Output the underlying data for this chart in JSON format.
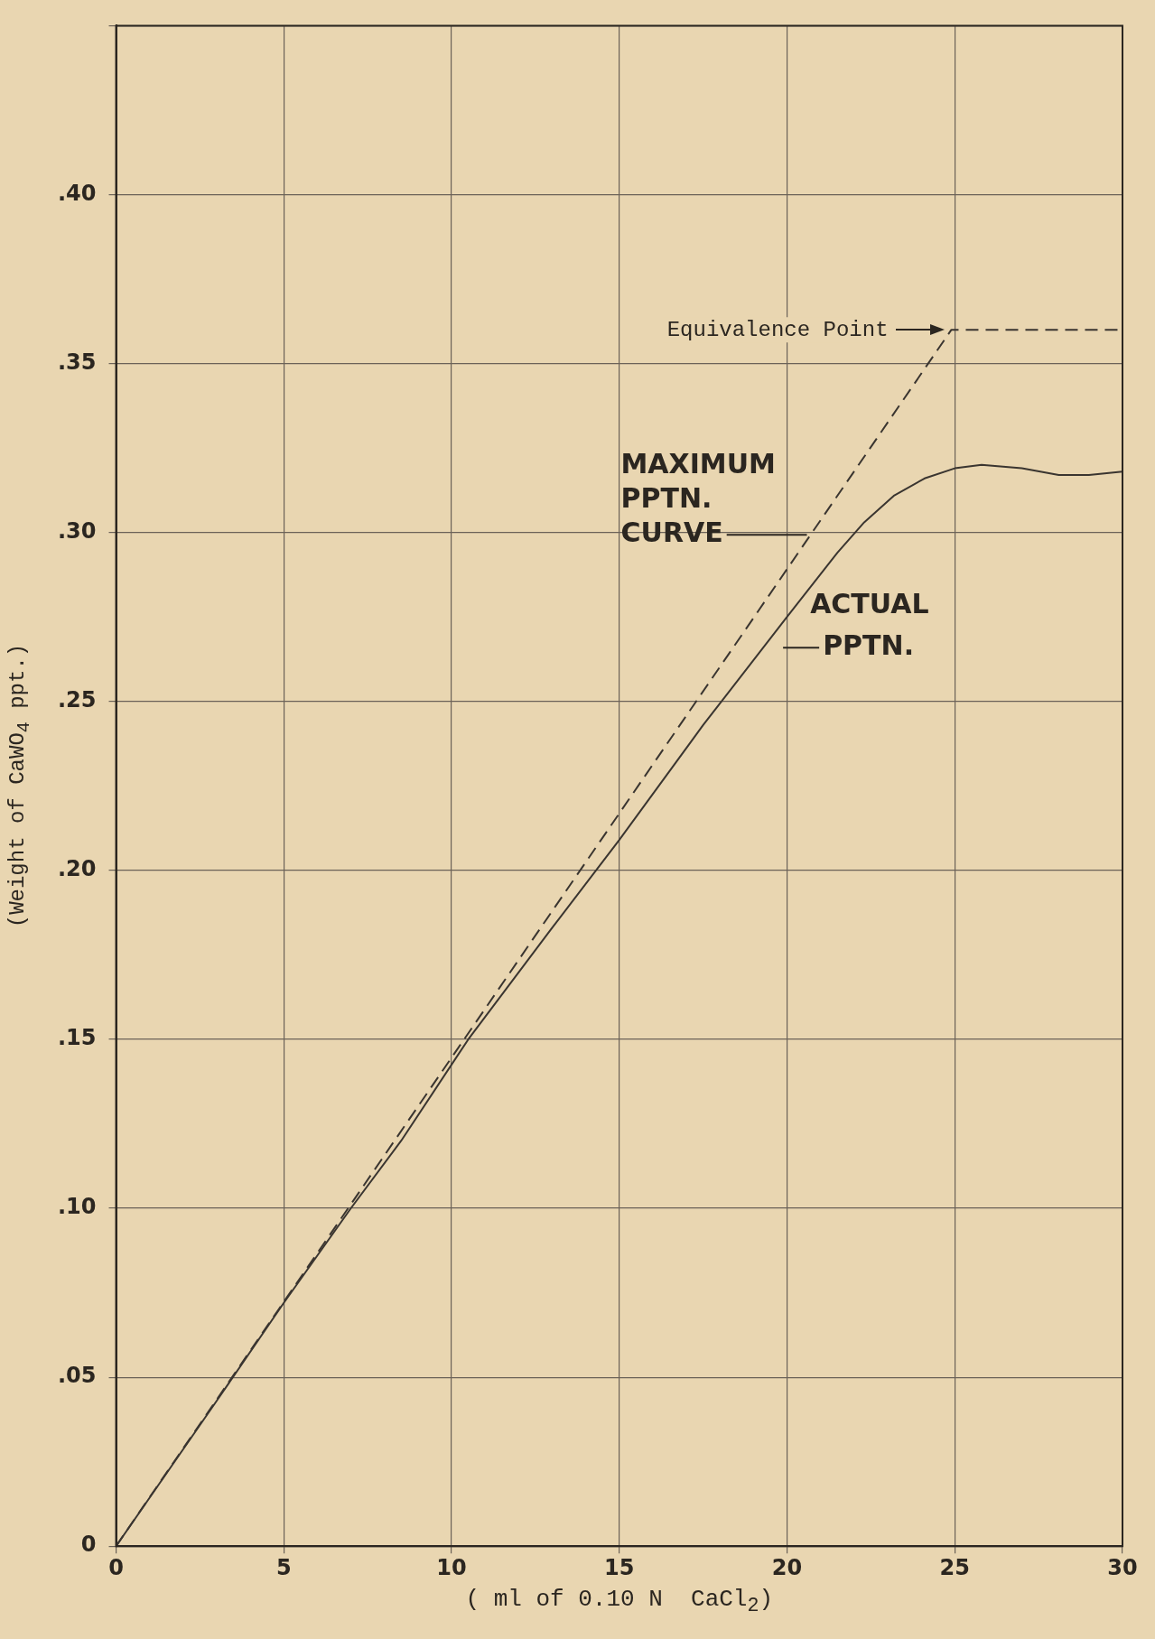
{
  "chart_data": {
    "type": "line",
    "xlabel": "( ml of 0.10 N  CaCl$_{2}$)",
    "ylabel": "(Weight of CaWO$_{4}$ ppt.)",
    "series": [
      {
        "name": "ACTUAL\nPPTN.",
        "color": "#3a3530",
        "line_style": "solid",
        "x": [
          0,
          3,
          5,
          7,
          8.5,
          10.5,
          13,
          15,
          17.5,
          20,
          21.5,
          22.3,
          23.2,
          24.1,
          25,
          25.8,
          27,
          28.1,
          29,
          30
        ],
        "values": [
          0,
          0.043,
          0.072,
          0.1,
          0.12,
          0.15,
          0.183,
          0.209,
          0.243,
          0.275,
          0.294,
          0.303,
          0.311,
          0.316,
          0.319,
          0.32,
          0.319,
          0.317,
          0.317,
          0.318
        ]
      },
      {
        "name": "MAXIMUM\nPPTN.\nCURVE",
        "color": "#3a3530",
        "line_style": "dashed",
        "x": [
          0,
          24.9,
          30
        ],
        "values": [
          0,
          0.36,
          0.36
        ]
      }
    ],
    "xlim": [
      0,
      30
    ],
    "xticks": [
      0,
      5,
      10,
      15,
      20,
      25,
      30
    ],
    "ylim": [
      0,
      0.45
    ],
    "yticks": [
      0,
      {
        "value": 0.05,
        "label": ".05"
      },
      {
        "value": 0.1,
        "label": ".10"
      },
      {
        "value": 0.15,
        "label": ".15"
      },
      {
        "value": 0.2,
        "label": ".20"
      },
      {
        "value": 0.25,
        "label": ".25"
      },
      {
        "value": 0.3,
        "label": ".30"
      },
      {
        "value": 0.35,
        "label": ".35"
      },
      {
        "value": 0.4,
        "label": ".40"
      },
      {
        "value": 0.45,
        "label": null
      }
    ],
    "grid": true,
    "legend": false,
    "marker": "none",
    "annotations": [
      {
        "text": "Equivalence Point",
        "x": 24.9,
        "y": 0.36
      }
    ]
  }
}
